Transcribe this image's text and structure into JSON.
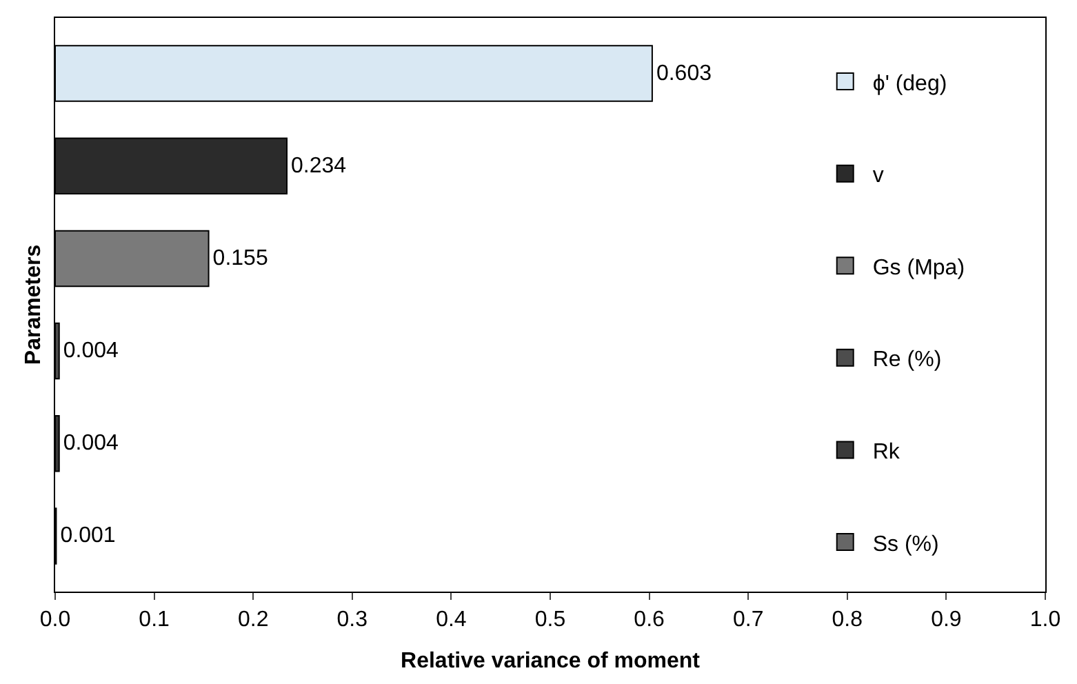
{
  "chart_data": {
    "type": "bar",
    "orientation": "horizontal",
    "xlabel": "Relative variance of moment",
    "ylabel": "Parameters",
    "categories": [
      null,
      null,
      null,
      null,
      null,
      null
    ],
    "series": [
      {
        "name": "ϕ' (deg)",
        "color": "#d9e8f3",
        "values": [
          0.603,
          null,
          null,
          null,
          null,
          null
        ]
      },
      {
        "name": "v",
        "color": "#2b2b2b",
        "values": [
          null,
          0.234,
          null,
          null,
          null,
          null
        ]
      },
      {
        "name": "Gs (Mpa)",
        "color": "#7a7a7a",
        "values": [
          null,
          null,
          0.155,
          null,
          null,
          null
        ]
      },
      {
        "name": "Re (%)",
        "color": "#4d4d4d",
        "values": [
          null,
          null,
          null,
          0.004,
          null,
          null
        ]
      },
      {
        "name": "Rk",
        "color": "#3a3a3a",
        "values": [
          null,
          null,
          null,
          null,
          0.004,
          null
        ]
      },
      {
        "name": "Ss (%)",
        "color": "#666666",
        "values": [
          null,
          null,
          null,
          null,
          null,
          0.001
        ]
      }
    ],
    "xlim": [
      0,
      1
    ],
    "xticks": [
      {
        "value": 0,
        "label": "0.0"
      },
      {
        "value": 0.1,
        "label": "0.1"
      },
      {
        "value": 0.2,
        "label": "0.2"
      },
      {
        "value": 0.3,
        "label": "0.3"
      },
      {
        "value": 0.4,
        "label": "0.4"
      },
      {
        "value": 0.5,
        "label": "0.5"
      },
      {
        "value": 0.6,
        "label": "0.6"
      },
      {
        "value": 0.7,
        "label": "0.7"
      },
      {
        "value": 0.8,
        "label": "0.8"
      },
      {
        "value": 0.9,
        "label": "0.9"
      },
      {
        "value": 1,
        "label": "1.0"
      }
    ],
    "data_labels": true,
    "legend": "right",
    "tick_labels": "x"
  }
}
